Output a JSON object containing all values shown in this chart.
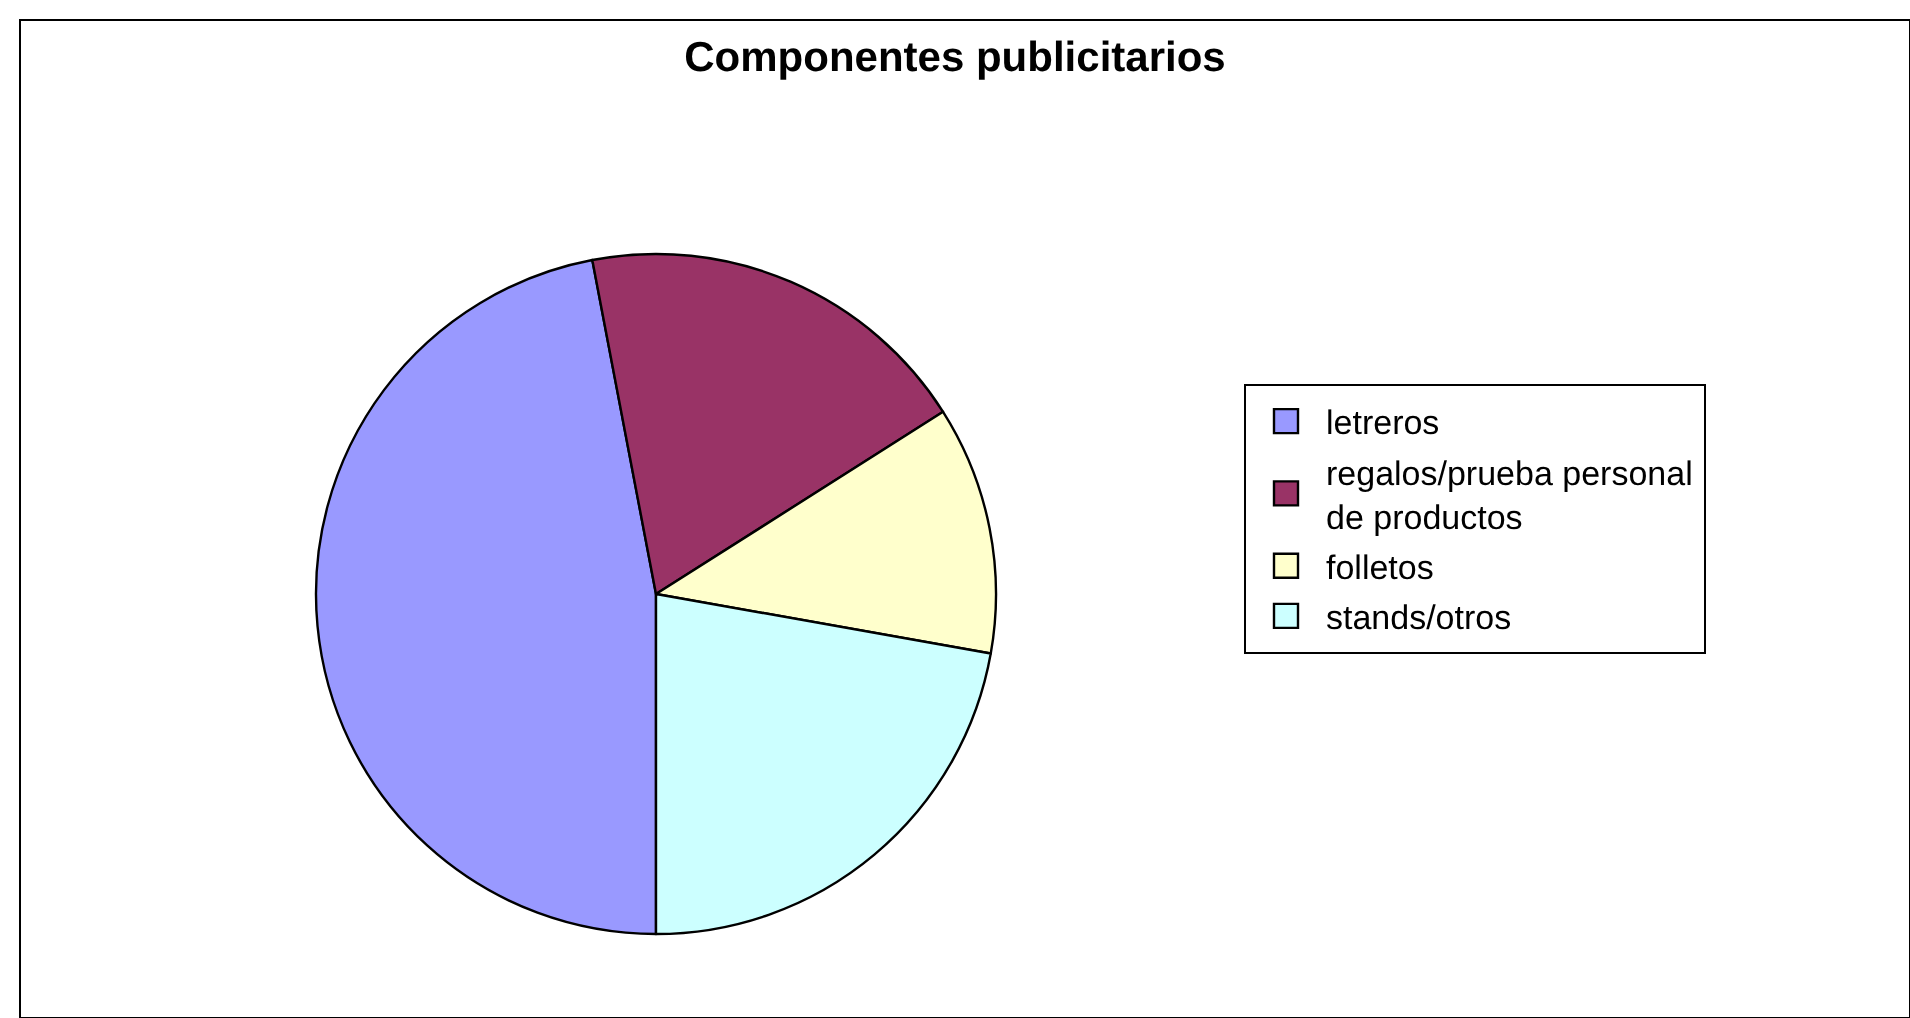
{
  "chart_data": {
    "type": "pie",
    "title": "Componentes publicitarios",
    "categories": [
      "letreros",
      "regalos/prueba personal de productos",
      "folletos",
      "stands/otros"
    ],
    "values": [
      47.0,
      19.0,
      11.8,
      22.2
    ],
    "colors": [
      "#9999ff",
      "#993366",
      "#ffffcc",
      "#ccffff"
    ],
    "legend": "right"
  }
}
